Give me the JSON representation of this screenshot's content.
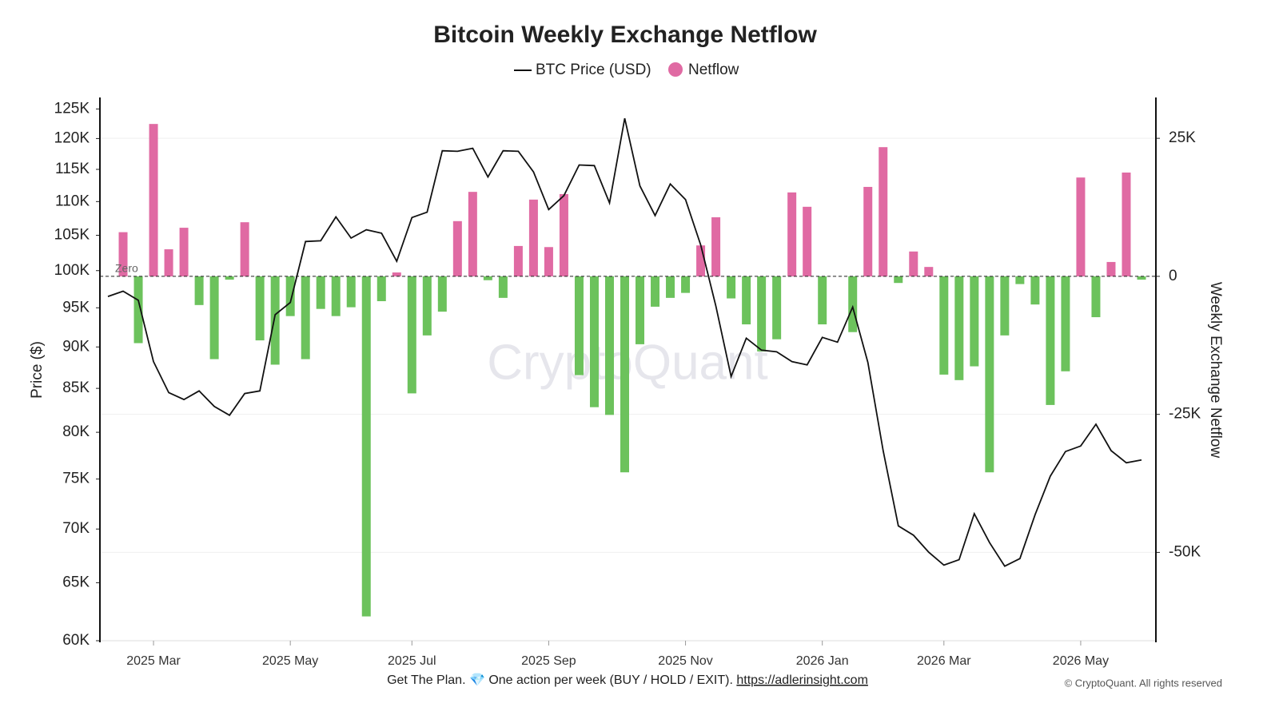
{
  "chart_data": {
    "type": "combo",
    "title": "Bitcoin Weekly Exchange Netflow",
    "ylabel": "Price ($)",
    "y2label": "Weekly Exchange Netflow",
    "zero_label": "Zero",
    "watermark": "CryptoQuant",
    "footer": {
      "text": "Get The Plan. 💎 One action per week (BUY / HOLD / EXIT).",
      "link": "https://adlerinsight.com"
    },
    "copyright": "© CryptoQuant. All rights reserved",
    "categories": [
      null,
      null,
      null,
      "2025 Mar",
      null,
      null,
      null,
      null,
      null,
      null,
      null,
      null,
      "2025 May",
      null,
      null,
      null,
      null,
      null,
      null,
      null,
      "2025 Jul",
      null,
      null,
      null,
      null,
      null,
      null,
      null,
      null,
      "2025 Sep",
      null,
      null,
      null,
      null,
      null,
      null,
      null,
      null,
      "2025 Nov",
      null,
      null,
      null,
      null,
      null,
      null,
      null,
      null,
      "2026 Jan",
      null,
      null,
      null,
      null,
      null,
      null,
      null,
      "2026 Mar",
      null,
      null,
      null,
      null,
      null,
      null,
      null,
      null,
      "2026 May",
      null,
      null,
      null,
      null
    ],
    "series": [
      {
        "name": "BTC Price (USD)",
        "type": "line",
        "color": "#111111",
        "axis": "y",
        "values": [
          96500,
          97200,
          96000,
          88200,
          84500,
          83700,
          84700,
          82900,
          81900,
          84400,
          84700,
          94100,
          95700,
          104100,
          104200,
          107700,
          104600,
          105800,
          105300,
          101300,
          107600,
          108400,
          118000,
          117900,
          118400,
          113800,
          118000,
          117900,
          114600,
          108800,
          110900,
          115700,
          115600,
          109800,
          123400,
          112400,
          107900,
          112700,
          110300,
          103600,
          95200,
          86400,
          91100,
          89600,
          89400,
          88200,
          87800,
          91200,
          90600,
          95100,
          88100,
          78000,
          70300,
          69400,
          67800,
          66600,
          67100,
          71500,
          68700,
          66500,
          67200,
          71400,
          75300,
          77900,
          78500,
          80900,
          78000,
          76700,
          77000
        ]
      },
      {
        "name": "Netflow",
        "type": "bar",
        "color": "#e06aa3",
        "negative_color": "#6cc25c",
        "axis": "y2",
        "values": [
          null,
          8000,
          -12100,
          27600,
          4900,
          8800,
          -5200,
          -15000,
          -600,
          9800,
          -11600,
          -16000,
          -7200,
          -15000,
          -5900,
          -7200,
          -5600,
          -61600,
          -4500,
          700,
          -21200,
          -10700,
          -6400,
          10000,
          15300,
          -700,
          -3900,
          5500,
          13900,
          5300,
          14900,
          -17900,
          -23700,
          -25100,
          -35500,
          -12300,
          -5500,
          -3900,
          -3000,
          5600,
          10700,
          -4000,
          -8700,
          -13600,
          -11400,
          15200,
          12600,
          -8700,
          null,
          -10100,
          16200,
          23400,
          -1200,
          4500,
          1700,
          -17800,
          -18800,
          -16300,
          -35500,
          -10700,
          -1400,
          -5100,
          -23300,
          -17200,
          17900,
          -7400,
          2600,
          18800,
          -600
        ]
      }
    ],
    "ylog": true,
    "ylim": [
      60000,
      127000
    ],
    "yticks": [
      {
        "value": 60000,
        "label": "60K"
      },
      {
        "value": 65000,
        "label": "65K"
      },
      {
        "value": 70000,
        "label": "70K"
      },
      {
        "value": 75000,
        "label": "75K"
      },
      {
        "value": 80000,
        "label": "80K"
      },
      {
        "value": 85000,
        "label": "85K"
      },
      {
        "value": 90000,
        "label": "90K"
      },
      {
        "value": 95000,
        "label": "95K"
      },
      {
        "value": 100000,
        "label": "100K"
      },
      {
        "value": 105000,
        "label": "105K"
      },
      {
        "value": 110000,
        "label": "110K"
      },
      {
        "value": 115000,
        "label": "115K"
      },
      {
        "value": 120000,
        "label": "120K"
      },
      {
        "value": 125000,
        "label": "125K"
      }
    ],
    "y2lim": [
      -66000,
      32400
    ],
    "y2ticks": [
      {
        "value": 25000,
        "label": "25K"
      },
      0,
      {
        "value": -25000,
        "label": "-25K"
      },
      {
        "value": -50000,
        "label": "-50K"
      }
    ],
    "grid": "y2"
  }
}
